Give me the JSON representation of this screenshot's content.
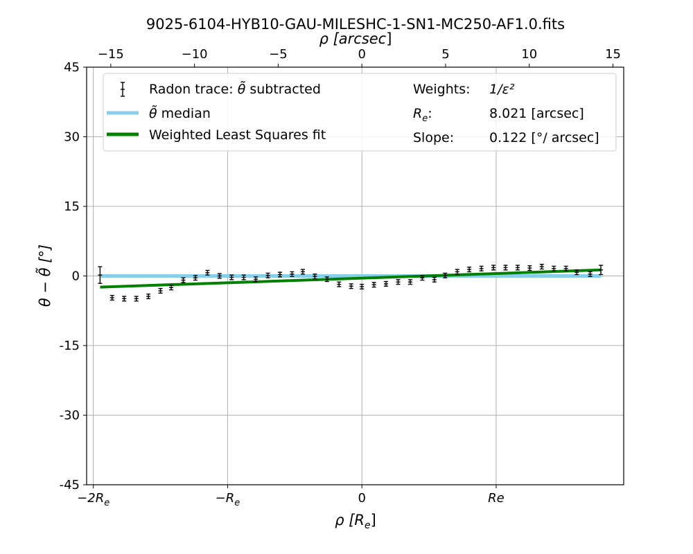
{
  "chart_data": {
    "type": "scatter",
    "title": "9025-6104-HYB10-GAU-MILESHC-1-SN1-MC250-AF1.0.fits",
    "xlabel": "ρ [R_e]",
    "xlabel_parts": {
      "main": "ρ [",
      "sub_var": "R",
      "sub": "e",
      "end": "]"
    },
    "ylabel": "θ − θ̃ [°]",
    "top_xlabel": "ρ [arcsec]",
    "top_xlabel_parts": {
      "main": "ρ [",
      "ital": "arcsec",
      "end": "]"
    },
    "xlim_re": [
      -2.05,
      1.95
    ],
    "ylim": [
      -45,
      45
    ],
    "grid": true,
    "y_ticks": [
      {
        "value": 45,
        "label": "45"
      },
      {
        "value": 30,
        "label": "30"
      },
      {
        "value": 15,
        "label": "15"
      },
      {
        "value": 0,
        "label": "0"
      },
      {
        "value": -15,
        "label": "-15"
      },
      {
        "value": -30,
        "label": "-30"
      },
      {
        "value": -45,
        "label": "-45"
      }
    ],
    "bottom_ticks": [
      {
        "value": -2,
        "label": "−2R",
        "sub": "e"
      },
      {
        "value": -1,
        "label": "−R",
        "sub": "e"
      },
      {
        "value": 0,
        "label": "0",
        "sub": ""
      },
      {
        "value": 1,
        "label": "Re",
        "sub": ""
      }
    ],
    "top_ticks_arcsec": [
      {
        "value": -15,
        "label": "−15"
      },
      {
        "value": -10,
        "label": "−10"
      },
      {
        "value": -5,
        "label": "−5"
      },
      {
        "value": 0,
        "label": "0"
      },
      {
        "value": 5,
        "label": "5"
      },
      {
        "value": 10,
        "label": "10"
      },
      {
        "value": 15,
        "label": "15"
      }
    ],
    "re_arcsec": 8.021,
    "series": [
      {
        "name": "Radon trace: θ̃ subtracted",
        "kind": "errorbar",
        "color": "#000000",
        "x": [
          -1.95,
          -1.86,
          -1.77,
          -1.68,
          -1.59,
          -1.5,
          -1.42,
          -1.33,
          -1.24,
          -1.15,
          -1.06,
          -0.97,
          -0.88,
          -0.79,
          -0.7,
          -0.61,
          -0.52,
          -0.44,
          -0.35,
          -0.26,
          -0.17,
          -0.08,
          0.0,
          0.09,
          0.18,
          0.27,
          0.36,
          0.45,
          0.54,
          0.62,
          0.71,
          0.8,
          0.89,
          0.98,
          1.07,
          1.16,
          1.25,
          1.34,
          1.43,
          1.52,
          1.6,
          1.7,
          1.78
        ],
        "y": [
          0.2,
          -4.7,
          -4.9,
          -4.9,
          -4.4,
          -3.2,
          -2.5,
          -0.9,
          -0.4,
          0.7,
          0.0,
          -0.3,
          -0.3,
          -0.7,
          0.1,
          0.3,
          0.4,
          0.9,
          -0.1,
          -0.7,
          -1.8,
          -2.2,
          -2.3,
          -1.9,
          -1.7,
          -1.3,
          -1.3,
          -0.4,
          -0.8,
          0.1,
          0.9,
          1.4,
          1.6,
          1.8,
          1.8,
          1.8,
          1.7,
          2.0,
          1.6,
          1.6,
          0.8,
          0.4,
          1.3
        ],
        "err": [
          1.8,
          0.5,
          0.5,
          0.5,
          0.5,
          0.5,
          0.5,
          0.5,
          0.5,
          0.5,
          0.5,
          0.5,
          0.5,
          0.5,
          0.5,
          0.5,
          0.5,
          0.5,
          0.5,
          0.5,
          0.5,
          0.5,
          0.5,
          0.5,
          0.5,
          0.5,
          0.5,
          0.5,
          0.5,
          0.5,
          0.5,
          0.5,
          0.5,
          0.5,
          0.5,
          0.5,
          0.5,
          0.5,
          0.5,
          0.5,
          0.5,
          0.5,
          1.0
        ]
      },
      {
        "name": "θ̃ median",
        "kind": "line",
        "color": "#87ceeb",
        "x": [
          -1.95,
          1.78
        ],
        "y": [
          0.0,
          0.0
        ]
      },
      {
        "name": "Weighted Least Squares fit",
        "kind": "line",
        "color": "#008000",
        "x": [
          -1.95,
          1.78
        ],
        "y": [
          -2.4,
          1.3
        ]
      }
    ],
    "legend": {
      "placement": "top",
      "entries": [
        {
          "text": "Radon trace: ",
          "math": "θ̃",
          "after": " subtracted"
        },
        {
          "text": "",
          "math": "θ̃",
          "after": " median"
        },
        {
          "text": "Weighted Least Squares fit",
          "math": "",
          "after": ""
        }
      ],
      "info": [
        {
          "key": "Weights:",
          "value": "1/ε²"
        },
        {
          "key": "R",
          "key_sub": "e",
          "key_end": ":",
          "value": "8.021 [arcsec]"
        },
        {
          "key": "Slope:",
          "value": "0.122 [°/ arcsec]"
        }
      ]
    }
  }
}
